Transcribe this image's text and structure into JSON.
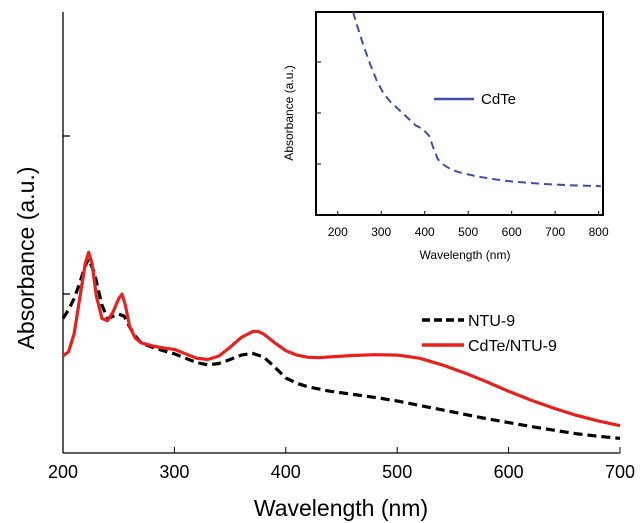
{
  "chart_data": [
    {
      "type": "line",
      "xlabel": "Wavelength (nm)",
      "ylabel": "Absorbance (a.u.)",
      "xlim": [
        200,
        700
      ],
      "xticks": [
        200,
        300,
        400,
        500,
        600,
        700
      ],
      "ylim": [
        0,
        1
      ],
      "legend_position": "right",
      "series": [
        {
          "name": "NTU-9",
          "color": "#000000",
          "style": "dashed",
          "x": [
            200,
            205,
            210,
            215,
            220,
            223,
            228,
            235,
            240,
            245,
            250,
            255,
            260,
            265,
            270,
            280,
            290,
            300,
            310,
            320,
            330,
            340,
            350,
            360,
            370,
            380,
            390,
            400,
            410,
            420,
            440,
            460,
            480,
            500,
            520,
            540,
            560,
            580,
            600,
            620,
            640,
            660,
            680,
            700
          ],
          "y": [
            0.305,
            0.325,
            0.35,
            0.385,
            0.425,
            0.44,
            0.41,
            0.335,
            0.305,
            0.31,
            0.315,
            0.31,
            0.285,
            0.265,
            0.25,
            0.24,
            0.232,
            0.225,
            0.215,
            0.205,
            0.2,
            0.203,
            0.212,
            0.222,
            0.226,
            0.218,
            0.195,
            0.17,
            0.158,
            0.15,
            0.14,
            0.133,
            0.126,
            0.118,
            0.108,
            0.098,
            0.088,
            0.078,
            0.069,
            0.06,
            0.052,
            0.044,
            0.038,
            0.033
          ]
        },
        {
          "name": "CdTe/NTU-9",
          "color": "#e8211d",
          "style": "solid",
          "x": [
            200,
            205,
            210,
            215,
            220,
            223,
            226,
            230,
            235,
            240,
            245,
            250,
            253,
            256,
            260,
            265,
            270,
            280,
            290,
            300,
            310,
            320,
            330,
            340,
            350,
            360,
            370,
            375,
            380,
            390,
            400,
            410,
            420,
            430,
            440,
            460,
            480,
            500,
            520,
            540,
            560,
            580,
            600,
            620,
            640,
            660,
            680,
            700
          ],
          "y": [
            0.22,
            0.23,
            0.27,
            0.35,
            0.43,
            0.455,
            0.43,
            0.355,
            0.305,
            0.3,
            0.32,
            0.35,
            0.36,
            0.335,
            0.285,
            0.26,
            0.25,
            0.243,
            0.238,
            0.235,
            0.225,
            0.215,
            0.212,
            0.22,
            0.24,
            0.262,
            0.275,
            0.276,
            0.27,
            0.25,
            0.232,
            0.222,
            0.217,
            0.216,
            0.218,
            0.221,
            0.223,
            0.222,
            0.215,
            0.2,
            0.182,
            0.162,
            0.14,
            0.12,
            0.102,
            0.086,
            0.073,
            0.062
          ]
        }
      ]
    },
    {
      "type": "line",
      "xlabel": "Wavelength (nm)",
      "ylabel": "Absorbance (a.u.)",
      "xlim": [
        150,
        810
      ],
      "xticks": [
        200,
        300,
        400,
        500,
        600,
        700,
        800
      ],
      "ylim": [
        0,
        1
      ],
      "legend_position": "top-right",
      "series": [
        {
          "name": "CdTe",
          "color": "#3f4fa8",
          "style": "dashed",
          "x": [
            235,
            245,
            260,
            275,
            290,
            305,
            320,
            335,
            350,
            365,
            380,
            395,
            410,
            420,
            430,
            445,
            460,
            480,
            500,
            520,
            550,
            580,
            610,
            640,
            670,
            700,
            730,
            760,
            790,
            805
          ],
          "y": [
            1.0,
            0.93,
            0.83,
            0.74,
            0.66,
            0.6,
            0.56,
            0.53,
            0.5,
            0.47,
            0.44,
            0.425,
            0.39,
            0.33,
            0.275,
            0.245,
            0.225,
            0.21,
            0.2,
            0.19,
            0.18,
            0.17,
            0.163,
            0.158,
            0.153,
            0.15,
            0.147,
            0.145,
            0.143,
            0.142
          ]
        }
      ]
    }
  ]
}
